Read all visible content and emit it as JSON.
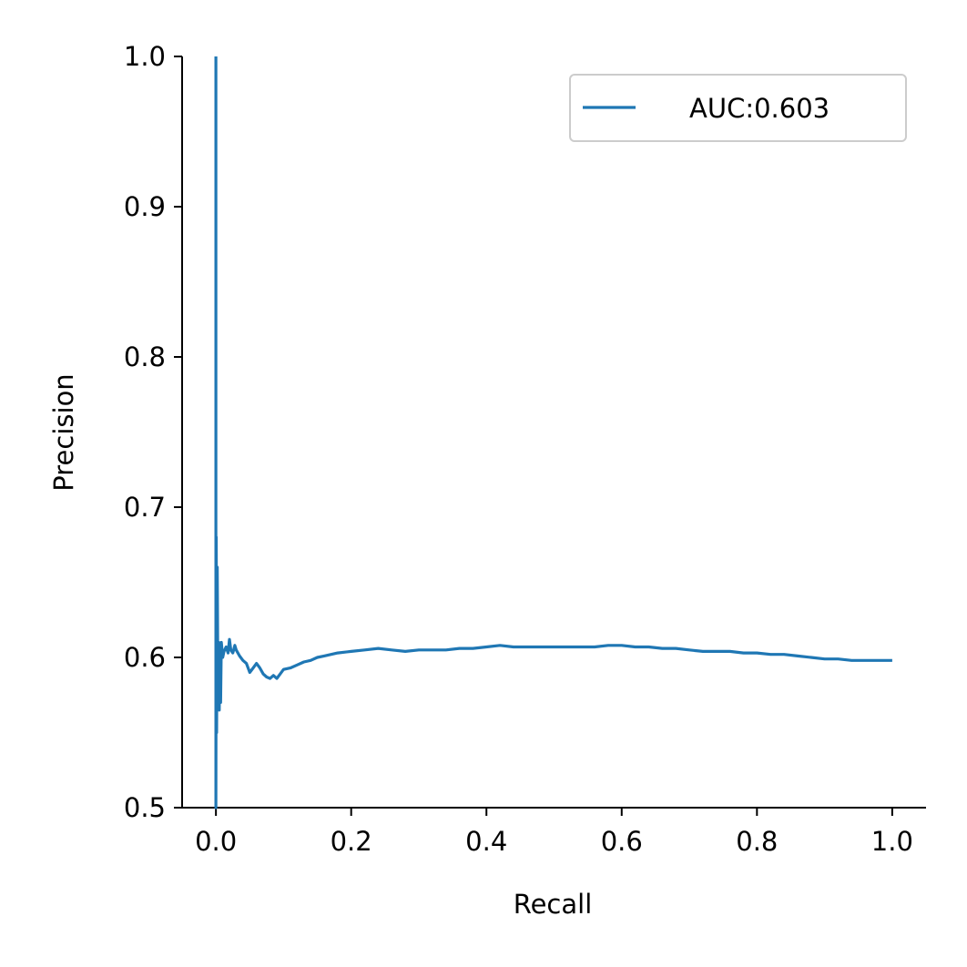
{
  "chart_data": {
    "type": "line",
    "title": "",
    "xlabel": "Recall",
    "ylabel": "Precision",
    "xlim": [
      -0.05,
      1.05
    ],
    "ylim": [
      0.5,
      1.0
    ],
    "x_ticks": [
      "0.0",
      "0.2",
      "0.4",
      "0.6",
      "0.8",
      "1.0"
    ],
    "x_tick_values": [
      0.0,
      0.2,
      0.4,
      0.6,
      0.8,
      1.0
    ],
    "y_ticks": [
      "0.5",
      "0.6",
      "0.7",
      "0.8",
      "0.9",
      "1.0"
    ],
    "y_tick_values": [
      0.5,
      0.6,
      0.7,
      0.8,
      0.9,
      1.0
    ],
    "grid": false,
    "legend_position": "top-right",
    "series": [
      {
        "name": "AUC:0.603",
        "color": "#1f77b4",
        "x": [
          0.0,
          0.0,
          0.0005,
          0.001,
          0.002,
          0.003,
          0.004,
          0.005,
          0.006,
          0.007,
          0.008,
          0.01,
          0.012,
          0.015,
          0.018,
          0.02,
          0.022,
          0.025,
          0.028,
          0.03,
          0.035,
          0.04,
          0.045,
          0.05,
          0.055,
          0.06,
          0.065,
          0.07,
          0.075,
          0.08,
          0.085,
          0.09,
          0.095,
          0.1,
          0.11,
          0.12,
          0.13,
          0.14,
          0.15,
          0.16,
          0.18,
          0.2,
          0.22,
          0.24,
          0.26,
          0.28,
          0.3,
          0.32,
          0.34,
          0.36,
          0.38,
          0.4,
          0.42,
          0.44,
          0.46,
          0.48,
          0.5,
          0.52,
          0.54,
          0.56,
          0.58,
          0.6,
          0.62,
          0.64,
          0.66,
          0.68,
          0.7,
          0.72,
          0.74,
          0.76,
          0.78,
          0.8,
          0.82,
          0.84,
          0.86,
          0.88,
          0.9,
          0.92,
          0.94,
          0.96,
          0.98,
          1.0
        ],
        "y": [
          1.0,
          0.5,
          0.68,
          0.55,
          0.66,
          0.57,
          0.61,
          0.565,
          0.605,
          0.57,
          0.61,
          0.6,
          0.604,
          0.607,
          0.603,
          0.612,
          0.605,
          0.603,
          0.608,
          0.605,
          0.601,
          0.598,
          0.596,
          0.59,
          0.593,
          0.596,
          0.593,
          0.589,
          0.587,
          0.586,
          0.588,
          0.586,
          0.589,
          0.592,
          0.593,
          0.595,
          0.597,
          0.598,
          0.6,
          0.601,
          0.603,
          0.604,
          0.605,
          0.606,
          0.605,
          0.604,
          0.605,
          0.605,
          0.605,
          0.606,
          0.606,
          0.607,
          0.608,
          0.607,
          0.607,
          0.607,
          0.607,
          0.607,
          0.607,
          0.607,
          0.608,
          0.608,
          0.607,
          0.607,
          0.606,
          0.606,
          0.605,
          0.604,
          0.604,
          0.604,
          0.603,
          0.603,
          0.602,
          0.602,
          0.601,
          0.6,
          0.599,
          0.599,
          0.598,
          0.598,
          0.598,
          0.598
        ]
      }
    ]
  }
}
